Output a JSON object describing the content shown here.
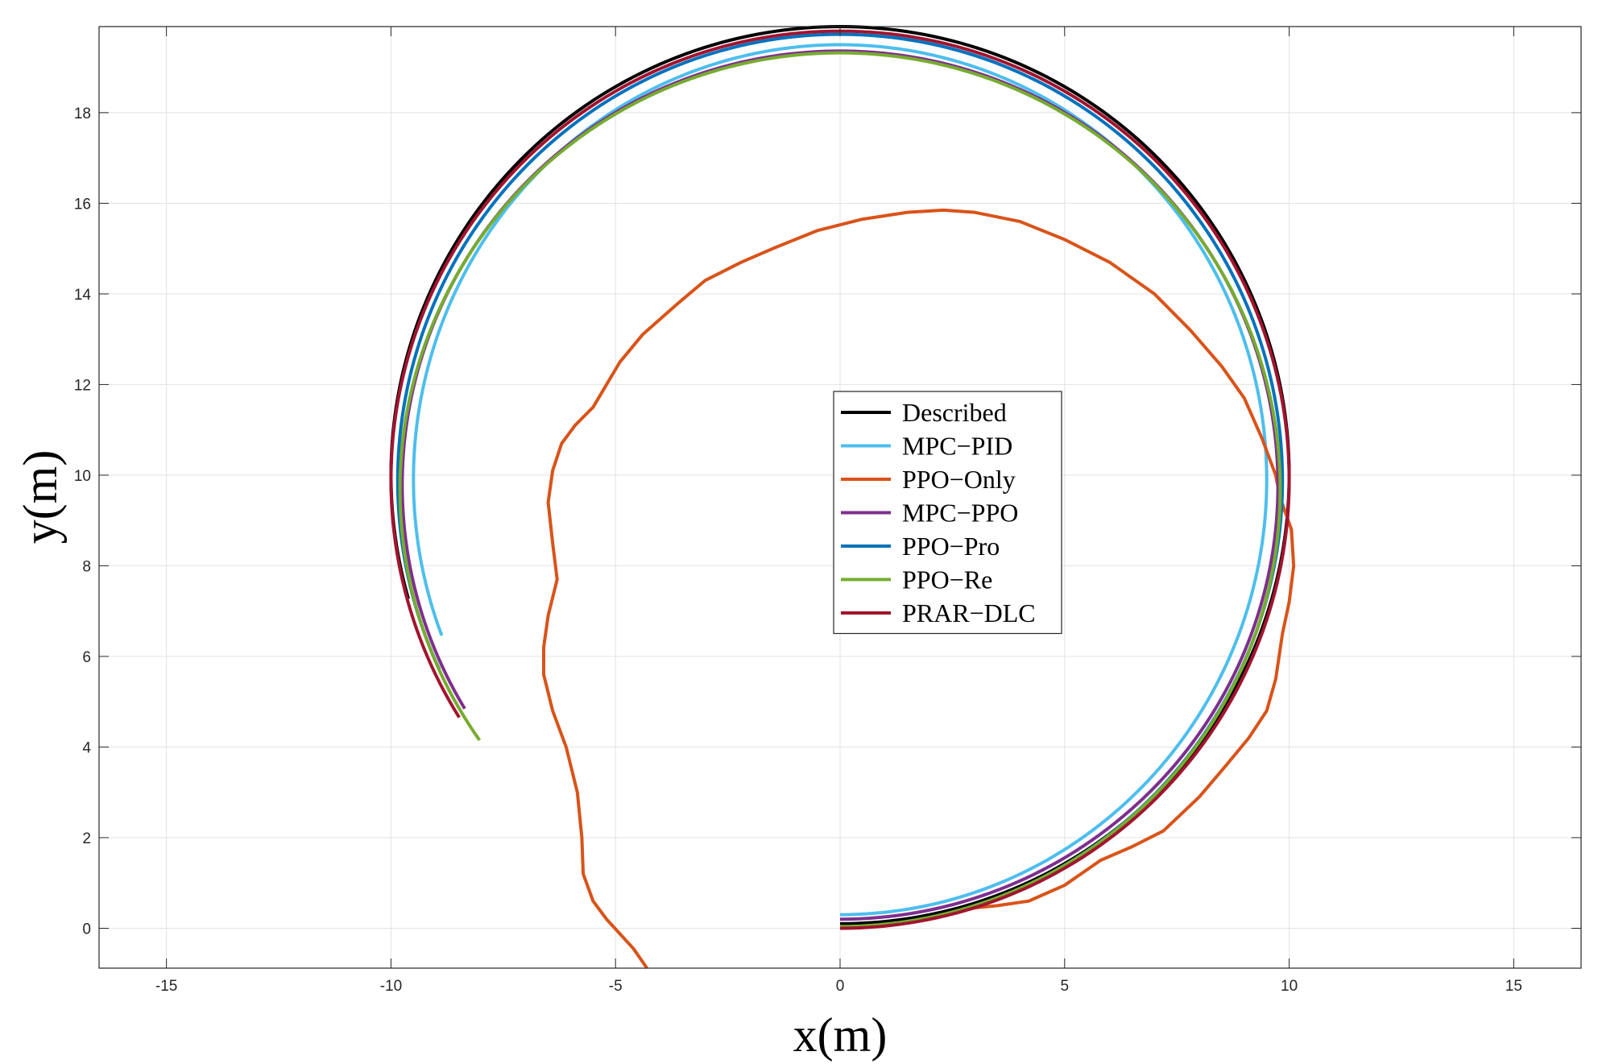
{
  "chart_data": {
    "type": "line",
    "title": "",
    "xlabel": "x(m)",
    "ylabel": "y(m)",
    "xlim": [
      -16.5,
      16.5
    ],
    "ylim": [
      -0.88,
      19.9
    ],
    "xticks": [
      -15,
      -10,
      -5,
      0,
      5,
      10,
      15
    ],
    "yticks": [
      0,
      2,
      4,
      6,
      8,
      10,
      12,
      14,
      16,
      18
    ],
    "grid": true,
    "legend_position": "center",
    "series": [
      {
        "name": "Described",
        "color": "#000000",
        "shape": {
          "kind": "arc",
          "cx": 0,
          "cy": 10,
          "rx": 10,
          "ry": 9.9,
          "start_deg": -90,
          "end_deg": 196
        }
      },
      {
        "name": "MPC−PID",
        "color": "#4DBEEE",
        "shape": {
          "kind": "arc",
          "cx": 0,
          "cy": 9.9,
          "rx": 9.5,
          "ry": 9.6,
          "start_deg": -90,
          "end_deg": 201
        }
      },
      {
        "name": "PPO−Only",
        "color": "#D95319",
        "points": [
          [
            0,
            0
          ],
          [
            1,
            0.05
          ],
          [
            2,
            0.2
          ],
          [
            3,
            0.45
          ],
          [
            3.5,
            0.5
          ],
          [
            4.2,
            0.6
          ],
          [
            5,
            0.95
          ],
          [
            5.8,
            1.5
          ],
          [
            6.5,
            1.8
          ],
          [
            7.2,
            2.15
          ],
          [
            8,
            2.9
          ],
          [
            8.6,
            3.6
          ],
          [
            9.1,
            4.2
          ],
          [
            9.5,
            4.8
          ],
          [
            9.7,
            5.5
          ],
          [
            9.85,
            6.5
          ],
          [
            10.0,
            7.2
          ],
          [
            10.1,
            8.0
          ],
          [
            10.05,
            8.8
          ],
          [
            9.8,
            9.5
          ],
          [
            9.7,
            10.0
          ],
          [
            9.4,
            10.8
          ],
          [
            9.0,
            11.7
          ],
          [
            8.5,
            12.4
          ],
          [
            7.8,
            13.2
          ],
          [
            7.0,
            14.0
          ],
          [
            6.0,
            14.7
          ],
          [
            5.0,
            15.2
          ],
          [
            4.0,
            15.6
          ],
          [
            3.0,
            15.8
          ],
          [
            2.3,
            15.85
          ],
          [
            1.5,
            15.8
          ],
          [
            0.5,
            15.65
          ],
          [
            -0.5,
            15.4
          ],
          [
            -1.5,
            15.0
          ],
          [
            -2.2,
            14.7
          ],
          [
            -3.0,
            14.3
          ],
          [
            -3.6,
            13.8
          ],
          [
            -4.4,
            13.1
          ],
          [
            -4.9,
            12.5
          ],
          [
            -5.2,
            12.0
          ],
          [
            -5.5,
            11.5
          ],
          [
            -5.9,
            11.1
          ],
          [
            -6.2,
            10.7
          ],
          [
            -6.4,
            10.1
          ],
          [
            -6.5,
            9.4
          ],
          [
            -6.4,
            8.5
          ],
          [
            -6.3,
            7.7
          ],
          [
            -6.5,
            6.9
          ],
          [
            -6.6,
            6.2
          ],
          [
            -6.6,
            5.6
          ],
          [
            -6.4,
            4.8
          ],
          [
            -6.1,
            4.0
          ],
          [
            -5.85,
            3.0
          ],
          [
            -5.75,
            2.0
          ],
          [
            -5.72,
            1.2
          ],
          [
            -5.5,
            0.6
          ],
          [
            -5.2,
            0.2
          ],
          [
            -4.6,
            -0.45
          ],
          [
            -4.3,
            -0.88
          ]
        ]
      },
      {
        "name": "MPC−PPO",
        "color": "#7E2F8E",
        "shape": {
          "kind": "arc",
          "cx": 0,
          "cy": 9.78,
          "rx": 9.75,
          "ry": 9.58,
          "start_deg": -90,
          "end_deg": 211
        }
      },
      {
        "name": "PPO−Pro",
        "color": "#0072BD",
        "shape": {
          "kind": "arc",
          "cx": 0,
          "cy": 9.88,
          "rx": 9.85,
          "ry": 9.85,
          "start_deg": -90,
          "end_deg": 205
        }
      },
      {
        "name": "PPO−Re",
        "color": "#77AC30",
        "shape": {
          "kind": "arc",
          "cx": 0,
          "cy": 9.68,
          "rx": 9.8,
          "ry": 9.64,
          "start_deg": -90,
          "end_deg": 215
        }
      },
      {
        "name": "PRAR−DLC",
        "color": "#A2142F",
        "shape": {
          "kind": "arc",
          "cx": 0,
          "cy": 9.9,
          "rx": 10.0,
          "ry": 9.9,
          "start_deg": -90,
          "end_deg": 212
        }
      }
    ]
  }
}
